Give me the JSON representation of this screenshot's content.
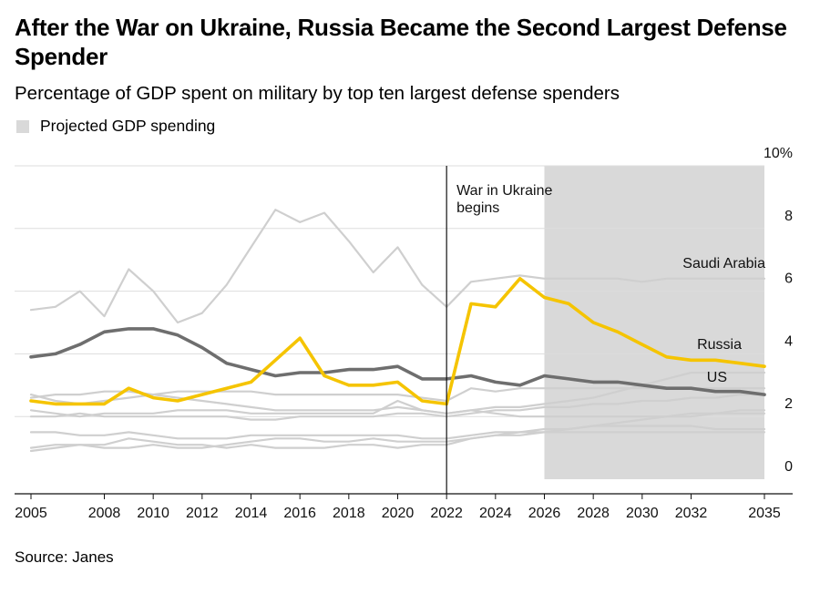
{
  "title": "After the War on Ukraine, Russia Became the Second Largest Defense Spender",
  "subtitle": "Percentage of GDP spent on military by top ten largest defense spenders",
  "legend_label": "Projected GDP spending",
  "source": "Source: Janes",
  "colors": {
    "russia": "#f5c400",
    "us": "#6e6e6e",
    "others": "#cfcfcf",
    "projection_band": "#d9d9d9",
    "grid": "#dddddd"
  },
  "chart_data": {
    "type": "line",
    "title": "After the War on Ukraine, Russia Became the Second Largest Defense Spender",
    "subtitle": "Percentage of GDP spent on military by top ten largest defense spenders",
    "xlabel": "",
    "ylabel": "",
    "xlim": [
      2005,
      2035
    ],
    "ylim": [
      0,
      10
    ],
    "y_ticks": [
      0,
      2,
      4,
      6,
      8,
      10
    ],
    "y_tick_labels": [
      "0",
      "2",
      "4",
      "6",
      "8",
      "10%"
    ],
    "x_ticks": [
      2005,
      2008,
      2010,
      2012,
      2014,
      2016,
      2018,
      2020,
      2022,
      2024,
      2026,
      2028,
      2030,
      2032,
      2035
    ],
    "x_tick_labels": [
      "2005",
      "2008",
      "2010",
      "2012",
      "2014",
      "2016",
      "2018",
      "2020",
      "2022",
      "2024",
      "2026",
      "2028",
      "2030",
      "2032",
      "2035"
    ],
    "grid": true,
    "projected_range": [
      2026,
      2035
    ],
    "annotation": {
      "x": 2022,
      "text": [
        "War in Ukraine",
        "begins"
      ]
    },
    "x": [
      2005,
      2006,
      2007,
      2008,
      2009,
      2010,
      2011,
      2012,
      2013,
      2014,
      2015,
      2016,
      2017,
      2018,
      2019,
      2020,
      2021,
      2022,
      2023,
      2024,
      2025,
      2026,
      2027,
      2028,
      2029,
      2030,
      2031,
      2032,
      2033,
      2034,
      2035
    ],
    "series": [
      {
        "name": "Saudi Arabia",
        "labeled": true,
        "highlight": "other",
        "values": [
          5.4,
          5.5,
          6.0,
          5.2,
          6.7,
          6.0,
          5.0,
          5.3,
          6.2,
          7.4,
          8.6,
          8.2,
          8.5,
          7.6,
          6.6,
          7.4,
          6.2,
          5.5,
          6.3,
          6.4,
          6.5,
          6.4,
          6.4,
          6.4,
          6.4,
          6.3,
          6.4,
          6.4,
          6.4,
          6.4,
          6.4
        ]
      },
      {
        "name": "",
        "labeled": false,
        "highlight": "other",
        "values": [
          2.7,
          2.5,
          2.4,
          2.5,
          2.6,
          2.7,
          2.6,
          2.5,
          2.4,
          2.3,
          2.2,
          2.2,
          2.2,
          2.2,
          2.2,
          2.3,
          2.2,
          2.1,
          2.2,
          2.1,
          2.0,
          2.0,
          2.0,
          2.0,
          2.0,
          2.0,
          2.0,
          2.1,
          2.1,
          2.2,
          2.2
        ]
      },
      {
        "name": "",
        "labeled": false,
        "highlight": "other",
        "values": [
          2.6,
          2.7,
          2.7,
          2.8,
          2.8,
          2.7,
          2.8,
          2.8,
          2.8,
          2.8,
          2.7,
          2.7,
          2.7,
          2.7,
          2.7,
          2.7,
          2.6,
          2.5,
          2.9,
          2.8,
          2.9,
          2.9,
          2.9,
          2.9,
          2.9,
          2.9,
          2.9,
          2.9,
          2.9,
          2.9,
          2.9
        ]
      },
      {
        "name": "",
        "labeled": false,
        "highlight": "other",
        "values": [
          2.2,
          2.1,
          2.0,
          2.1,
          2.1,
          2.1,
          2.2,
          2.2,
          2.2,
          2.1,
          2.1,
          2.1,
          2.1,
          2.1,
          2.1,
          2.5,
          2.2,
          2.1,
          2.2,
          2.3,
          2.3,
          2.4,
          2.5,
          2.6,
          2.8,
          3.0,
          3.2,
          3.4,
          3.4,
          3.4,
          3.4
        ]
      },
      {
        "name": "",
        "labeled": false,
        "highlight": "other",
        "values": [
          2.0,
          2.0,
          2.1,
          2.0,
          2.0,
          2.0,
          2.0,
          2.0,
          2.0,
          1.9,
          1.9,
          2.0,
          2.0,
          2.0,
          2.0,
          2.1,
          2.1,
          2.0,
          2.1,
          2.2,
          2.2,
          2.3,
          2.3,
          2.4,
          2.4,
          2.5,
          2.5,
          2.6,
          2.6,
          2.7,
          2.7
        ]
      },
      {
        "name": "",
        "labeled": false,
        "highlight": "other",
        "values": [
          1.5,
          1.5,
          1.4,
          1.4,
          1.5,
          1.4,
          1.3,
          1.3,
          1.3,
          1.4,
          1.4,
          1.4,
          1.4,
          1.4,
          1.4,
          1.4,
          1.3,
          1.3,
          1.4,
          1.5,
          1.5,
          1.6,
          1.6,
          1.7,
          1.7,
          1.7,
          1.7,
          1.7,
          1.6,
          1.6,
          1.6
        ]
      },
      {
        "name": "",
        "labeled": false,
        "highlight": "other",
        "values": [
          1.0,
          1.1,
          1.1,
          1.1,
          1.3,
          1.2,
          1.1,
          1.1,
          1.0,
          1.1,
          1.0,
          1.0,
          1.0,
          1.1,
          1.1,
          1.0,
          1.1,
          1.1,
          1.3,
          1.4,
          1.4,
          1.5,
          1.6,
          1.7,
          1.8,
          1.9,
          2.0,
          2.0,
          2.1,
          2.1,
          2.1
        ]
      },
      {
        "name": "",
        "labeled": false,
        "highlight": "other",
        "values": [
          0.9,
          1.0,
          1.1,
          1.0,
          1.0,
          1.1,
          1.0,
          1.0,
          1.1,
          1.2,
          1.3,
          1.3,
          1.2,
          1.2,
          1.3,
          1.2,
          1.2,
          1.2,
          1.3,
          1.4,
          1.5,
          1.5,
          1.5,
          1.5,
          1.5,
          1.5,
          1.5,
          1.5,
          1.5,
          1.5,
          1.5
        ]
      },
      {
        "name": "US",
        "labeled": true,
        "highlight": "us",
        "values": [
          3.9,
          4.0,
          4.3,
          4.7,
          4.8,
          4.8,
          4.6,
          4.2,
          3.7,
          3.5,
          3.3,
          3.4,
          3.4,
          3.5,
          3.5,
          3.6,
          3.2,
          3.2,
          3.3,
          3.1,
          3.0,
          3.3,
          3.2,
          3.1,
          3.1,
          3.0,
          2.9,
          2.9,
          2.8,
          2.8,
          2.7
        ]
      },
      {
        "name": "Russia",
        "labeled": true,
        "highlight": "russia",
        "values": [
          2.5,
          2.4,
          2.4,
          2.4,
          2.9,
          2.6,
          2.5,
          2.7,
          2.9,
          3.1,
          3.8,
          4.5,
          3.3,
          3.0,
          3.0,
          3.1,
          2.5,
          2.4,
          5.6,
          5.5,
          6.4,
          5.8,
          5.6,
          5.0,
          4.7,
          4.3,
          3.9,
          3.8,
          3.8,
          3.7,
          3.6
        ]
      }
    ]
  }
}
